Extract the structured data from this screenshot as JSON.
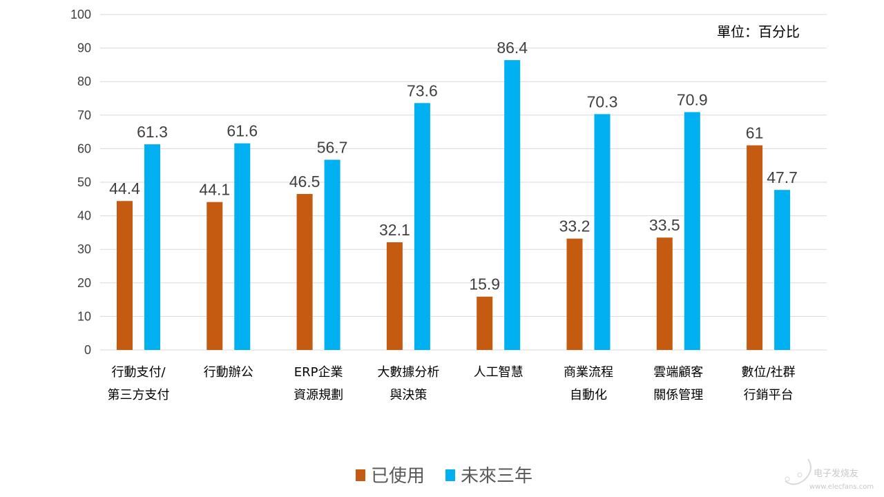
{
  "chart_data": {
    "type": "bar",
    "title": "",
    "annotation": "單位：百分比",
    "categories": [
      [
        "行動支付/",
        "第三方支付"
      ],
      [
        "行動辦公"
      ],
      [
        "ERP企業",
        "資源規劃"
      ],
      [
        "大數據分析",
        "與決策"
      ],
      [
        "人工智慧"
      ],
      [
        "商業流程",
        "自動化"
      ],
      [
        "雲端顧客",
        "關係管理"
      ],
      [
        "數位/社群",
        "行銷平台"
      ]
    ],
    "series": [
      {
        "name": "已使用",
        "color": "#C55A11",
        "values": [
          44.4,
          44.1,
          46.5,
          32.1,
          15.9,
          33.2,
          33.5,
          61
        ]
      },
      {
        "name": "未來三年",
        "color": "#00B0F0",
        "values": [
          61.3,
          61.6,
          56.7,
          73.6,
          86.4,
          70.3,
          70.9,
          47.7
        ]
      }
    ],
    "ylim": [
      0,
      100
    ],
    "yticks": [
      0,
      10,
      20,
      30,
      40,
      50,
      60,
      70,
      80,
      90,
      100
    ],
    "grid": true,
    "legend_position": "bottom",
    "xlabel": "",
    "ylabel": ""
  },
  "watermark": {
    "logo_text": "电子发烧友",
    "url": "www.elecfans.com"
  }
}
